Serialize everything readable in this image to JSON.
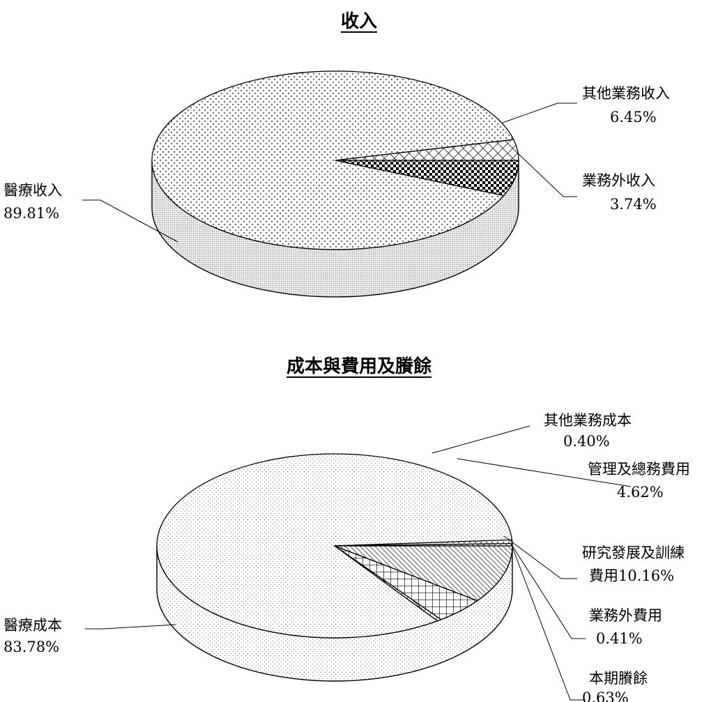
{
  "chart_data": [
    {
      "type": "pie",
      "title": "收入",
      "slices": [
        {
          "label": "醫療收入",
          "value": 89.81,
          "pct_text": "89.81%"
        },
        {
          "label": "其他業務收入",
          "value": 6.45,
          "pct_text": "6.45%"
        },
        {
          "label": "業務外收入",
          "value": 3.74,
          "pct_text": "3.74%"
        }
      ]
    },
    {
      "type": "pie",
      "title": "成本與費用及賸餘",
      "slices": [
        {
          "label": "醫療成本",
          "value": 83.78,
          "pct_text": "83.78%"
        },
        {
          "label": "其他業務成本",
          "value": 0.4,
          "pct_text": "0.40%"
        },
        {
          "label": "管理及總務費用",
          "value": 4.62,
          "pct_text": "4.62%"
        },
        {
          "label": "研究發展及訓練",
          "label2": "費用10.16%",
          "value": 10.16,
          "pct_text": ""
        },
        {
          "label": "業務外費用",
          "value": 0.41,
          "pct_text": "0.41%"
        },
        {
          "label": "本期賸餘",
          "value": 0.63,
          "pct_text": "0.63%"
        }
      ]
    }
  ]
}
